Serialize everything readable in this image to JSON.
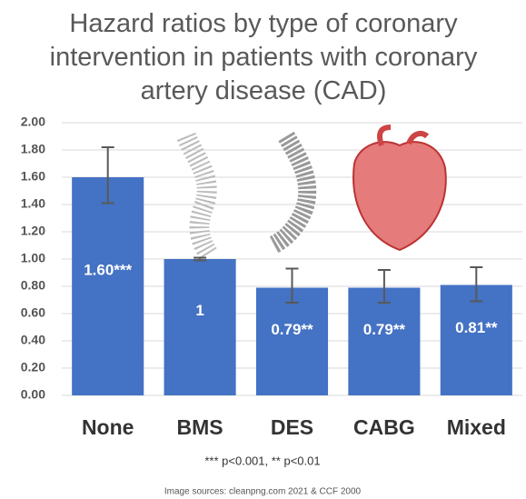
{
  "chart_data": {
    "type": "bar",
    "title": "Hazard ratios by type of coronary intervention in patients with coronary artery disease (CAD)",
    "categories": [
      "None",
      "BMS",
      "DES",
      "CABG",
      "Mixed"
    ],
    "values": [
      1.6,
      1.0,
      0.79,
      0.79,
      0.81
    ],
    "value_labels": [
      "1.60***",
      "1",
      "0.79**",
      "0.79**",
      "0.81**"
    ],
    "error_low": [
      1.41,
      0.99,
      0.68,
      0.68,
      0.69
    ],
    "error_high": [
      1.82,
      1.01,
      0.93,
      0.92,
      0.94
    ],
    "color": "#4472c4",
    "ylim": [
      0,
      2
    ],
    "yticks": [
      {
        "value": 0,
        "label": "0.00"
      },
      {
        "value": 0.2,
        "label": "0.20"
      },
      {
        "value": 0.4,
        "label": "0.40"
      },
      {
        "value": 0.6,
        "label": "0.60"
      },
      {
        "value": 0.8,
        "label": "0.80"
      },
      {
        "value": 1,
        "label": "1.00"
      },
      {
        "value": 1.2,
        "label": "1.20"
      },
      {
        "value": 1.4,
        "label": "1.40"
      },
      {
        "value": 1.6,
        "label": "1.60"
      },
      {
        "value": 1.8,
        "label": "1.80"
      },
      {
        "value": 2,
        "label": "2.00"
      }
    ],
    "grid": true,
    "footnote": "*** p<0.001, ** p<0.01",
    "source": "Image sources: cleanpng.com 2021 & CCF 2000"
  }
}
